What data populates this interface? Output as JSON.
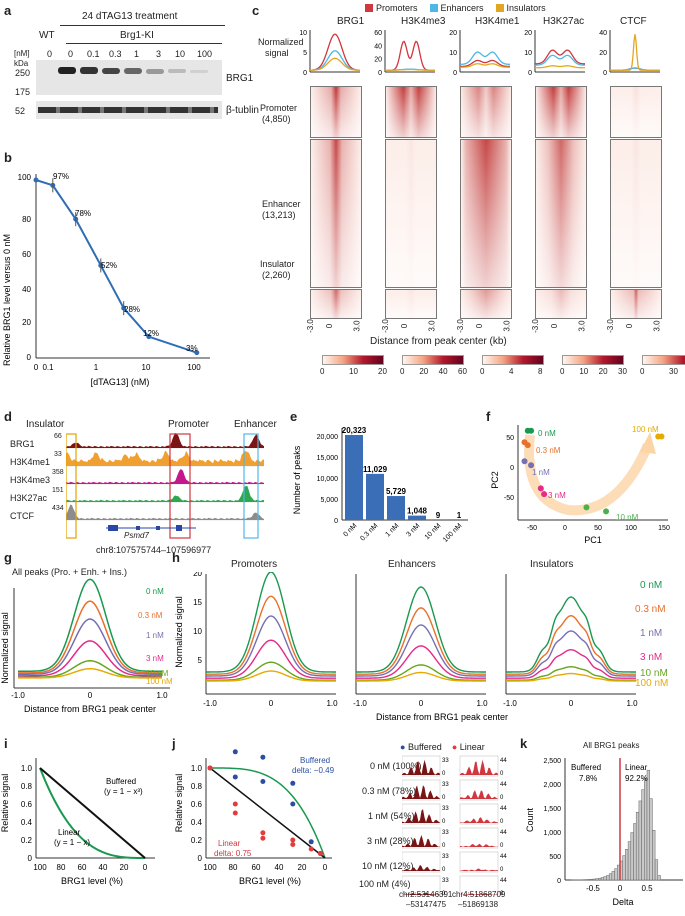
{
  "panel_letters": [
    "a",
    "b",
    "c",
    "d",
    "e",
    "f",
    "g",
    "h",
    "i",
    "j",
    "k"
  ],
  "a": {
    "treatment": "24 dTAG13 treatment",
    "wt": "WT",
    "brg1_ki": "Brg1-KI",
    "nm_unit": "[nM]",
    "kda": "kDa",
    "doses": [
      "0",
      "0",
      "0.1",
      "0.3",
      "1",
      "3",
      "10",
      "100"
    ],
    "markers": [
      "250",
      "175",
      "52"
    ],
    "band_brg1": "BRG1",
    "band_tubulin": "β-tublin"
  },
  "b": {
    "ylabel": "Relative BRG1 level versus 0 nM",
    "xlabel": "[dTAG13] (nM)",
    "yticks": [
      "0",
      "20",
      "40",
      "60",
      "80",
      "100"
    ],
    "xticks": [
      "0",
      "0.1",
      "1",
      "10",
      "100"
    ],
    "pct": [
      "97%",
      "78%",
      "52%",
      "28%",
      "12%",
      "3%"
    ],
    "chart_data": {
      "type": "line",
      "x": [
        0.1,
        0.3,
        1,
        3,
        10,
        100
      ],
      "values": [
        97,
        78,
        52,
        28,
        12,
        3
      ],
      "ylim": [
        0,
        100
      ]
    }
  },
  "c": {
    "legend": [
      "Promoters",
      "Enhancers",
      "Insulators"
    ],
    "legend_colors": [
      "#d1373f",
      "#4fb7e5",
      "#e2a722"
    ],
    "ylabel_1": "Normalized",
    "ylabel_2": "signal",
    "cols": [
      "BRG1",
      "H3K4me3",
      "H3K4me1",
      "H3K27ac",
      "CTCF"
    ],
    "top_yticks": [
      [
        "0",
        "5",
        "10"
      ],
      [
        "0",
        "20",
        "40",
        "60"
      ],
      [
        "0",
        "10",
        "20"
      ],
      [
        "0",
        "10",
        "20"
      ],
      [
        "0",
        "20",
        "40"
      ]
    ],
    "rows": [
      {
        "name": "Promoter",
        "n": "(4,850)"
      },
      {
        "name": "Enhancer",
        "n": "(13,213)"
      },
      {
        "name": "Insulator",
        "n": "(2,260)"
      }
    ],
    "xticks": [
      "-3.0",
      "0",
      "3.0"
    ],
    "xlabel": "Distance from peak center (kb)",
    "scale_ticks": [
      [
        "0",
        "10",
        "20"
      ],
      [
        "0",
        "20",
        "40",
        "60"
      ],
      [
        "0",
        "4",
        "8"
      ],
      [
        "0",
        "10",
        "20",
        "30"
      ],
      [
        "0",
        "30",
        "60"
      ]
    ]
  },
  "d": {
    "labels_top": [
      "Insulator",
      "Promoter",
      "Enhancer"
    ],
    "tracks": [
      "BRG1",
      "H3K4me1",
      "H3K4me3",
      "H3K27ac",
      "CTCF"
    ],
    "scales": [
      "66",
      "33",
      "358",
      "151",
      "434"
    ],
    "gene": "Psmd7",
    "coord": "chr8:107575744–107596977"
  },
  "e": {
    "ylabel": "Number of peaks",
    "yticks": [
      "0",
      "5,000",
      "10,000",
      "15,000",
      "20,000"
    ],
    "chart_data": {
      "type": "bar",
      "categories": [
        "0 nM",
        "0.3 nM",
        "1 nM",
        "3 nM",
        "10 nM",
        "100 nM"
      ],
      "values": [
        20323,
        11029,
        5729,
        1048,
        9,
        1
      ],
      "value_labels": [
        "20,323",
        "11,029",
        "5,729",
        "1,048",
        "9",
        "1"
      ],
      "ylim": [
        0,
        22000
      ]
    }
  },
  "f": {
    "xlabel": "PC1",
    "ylabel": "PC2",
    "yticks": [
      "50",
      "0",
      "-50"
    ],
    "xticks": [
      "-50",
      "0",
      "50",
      "100",
      "150"
    ],
    "point_labels": [
      "0 nM",
      "0.3 nM",
      "1 nM",
      "3 nM",
      "10 nM",
      "100 nM"
    ],
    "chart_data": {
      "type": "scatter",
      "points": [
        {
          "x": -55,
          "y": 55,
          "group": "0 nM",
          "color": "#1a9850"
        },
        {
          "x": -50,
          "y": 55,
          "group": "0 nM",
          "color": "#1a9850"
        },
        {
          "x": -60,
          "y": 35,
          "group": "0.3 nM",
          "color": "#e8702a"
        },
        {
          "x": -55,
          "y": 30,
          "group": "0.3 nM",
          "color": "#e8702a"
        },
        {
          "x": -60,
          "y": 2,
          "group": "1 nM",
          "color": "#7570b3"
        },
        {
          "x": -50,
          "y": -5,
          "group": "1 nM",
          "color": "#7570b3"
        },
        {
          "x": -35,
          "y": -45,
          "group": "3 nM",
          "color": "#e7298a"
        },
        {
          "x": -30,
          "y": -55,
          "group": "3 nM",
          "color": "#e7298a"
        },
        {
          "x": 35,
          "y": -78,
          "group": "10 nM",
          "color": "#4daf4a"
        },
        {
          "x": 65,
          "y": -85,
          "group": "10 nM",
          "color": "#4daf4a"
        },
        {
          "x": 145,
          "y": 45,
          "group": "100 nM",
          "color": "#e6ab02"
        },
        {
          "x": 150,
          "y": 45,
          "group": "100 nM",
          "color": "#e6ab02"
        }
      ],
      "xlim": [
        -70,
        160
      ],
      "ylim": [
        -100,
        65
      ]
    }
  },
  "g": {
    "title": "All peaks (Pro. + Enh. + Ins.)",
    "ylabel": "Normalized signal",
    "xlabel": "Distance from BRG1 peak center",
    "xticks": [
      "-1.0",
      "0",
      "1.0"
    ],
    "series_labels": [
      "0 nM",
      "0.3 nM",
      "1 nM",
      "3 nM",
      "10 nM",
      "100 nM"
    ],
    "series_colors": [
      "#1a9850",
      "#e8702a",
      "#7570b3",
      "#e7298a",
      "#66a61e",
      "#e6ab02"
    ],
    "chart_data": {
      "type": "line",
      "x_range": [
        -1.0,
        1.0
      ],
      "series": [
        {
          "name": "0 nM",
          "peak": 1.0
        },
        {
          "name": "0.3 nM",
          "peak": 0.78
        },
        {
          "name": "1 nM",
          "peak": 0.6
        },
        {
          "name": "3 nM",
          "peak": 0.38
        },
        {
          "name": "10 nM",
          "peak": 0.18
        },
        {
          "name": "100 nM",
          "peak": 0.1
        }
      ]
    }
  },
  "h": {
    "ylabel": "Normalized signal",
    "yticks": [
      "5",
      "10",
      "15",
      "20"
    ],
    "titles": [
      "Promoters",
      "Enhancers",
      "Insulators"
    ],
    "xlabel": "Distance from BRG1 peak center",
    "xticks": [
      "-1.0",
      "0",
      "1.0"
    ],
    "series_labels": [
      "0 nM",
      "0.3 nM",
      "1 nM",
      "3 nM",
      "10 nM",
      "100 nM"
    ]
  },
  "i": {
    "ylabel": "Relative signal",
    "xlabel": "BRG1 level (%)",
    "yticks": [
      "0",
      "0.2",
      "0.4",
      "0.6",
      "0.8",
      "1.0"
    ],
    "xticks": [
      "100",
      "80",
      "60",
      "40",
      "20",
      "0"
    ],
    "buffered": "Buffered",
    "buffered_eq": "(y = 1 − x³)",
    "linear": "Linear",
    "linear_eq": "(y = 1 − x)"
  },
  "j": {
    "ylabel": "Relative signal",
    "xlabel": "BRG1 level (%)",
    "yticks": [
      "0",
      "0.2",
      "0.4",
      "0.6",
      "0.8",
      "1.0"
    ],
    "xticks": [
      "100",
      "80",
      "60",
      "40",
      "20",
      "0"
    ],
    "buffered_1": "Buffered",
    "buffered_2": "delta: −0.49",
    "linear_1": "Linear",
    "linear_2": "delta: 0.75",
    "legend": [
      "Buffered",
      "Linear"
    ],
    "conds": [
      "0 nM (100%)",
      "0.3 nM (78%)",
      "1 nM (54%)",
      "3 nM (28%)",
      "10 nM (12%)",
      "100 nM (4%)"
    ],
    "scale_a": [
      "33",
      "0",
      "33",
      "0",
      "33",
      "0",
      "33",
      "0",
      "33",
      "0",
      "33",
      "0"
    ],
    "scale_b": [
      "44",
      "0",
      "44",
      "0",
      "44",
      "0",
      "44",
      "0",
      "44",
      "0",
      "44",
      "0"
    ],
    "coord_a_1": "chr2:53146391",
    "coord_a_2": "–53147475",
    "coord_b_1": "chr4:51868709",
    "coord_b_2": "–51869138",
    "chart_data": {
      "type": "scatter",
      "x_unit": "BRG1 level (%)",
      "buffered": [
        [
          100,
          1.0
        ],
        [
          78,
          1.18
        ],
        [
          78,
          0.9
        ],
        [
          54,
          1.12
        ],
        [
          54,
          0.85
        ],
        [
          28,
          0.83
        ],
        [
          28,
          0.6
        ],
        [
          12,
          0.18
        ],
        [
          4,
          0.05
        ]
      ],
      "linear": [
        [
          100,
          1.0
        ],
        [
          78,
          0.6
        ],
        [
          78,
          0.5
        ],
        [
          54,
          0.28
        ],
        [
          54,
          0.22
        ],
        [
          28,
          0.2
        ],
        [
          28,
          0.15
        ],
        [
          12,
          0.1
        ],
        [
          4,
          0.05
        ]
      ]
    }
  },
  "k": {
    "title": "All BRG1 peaks",
    "ylabel": "Count",
    "xlabel": "Delta",
    "yticks": [
      "0",
      "500",
      "1,000",
      "1,500",
      "2,000",
      "2,500"
    ],
    "xticks": [
      "-0.5",
      "0",
      "0.5"
    ],
    "buffered": "Buffered",
    "buffered_pct": "7.8%",
    "linear": "Linear",
    "linear_pct": "92.2%",
    "chart_data": {
      "type": "bar",
      "bin_start": -0.9,
      "bin_width": 0.05,
      "values": [
        2,
        3,
        4,
        5,
        7,
        9,
        12,
        16,
        22,
        30,
        40,
        55,
        75,
        100,
        140,
        190,
        250,
        330,
        420,
        540,
        680,
        850,
        1050,
        1250,
        1500,
        1750,
        2000,
        2250,
        2430,
        1800,
        1100,
        450,
        100
      ],
      "ylim": [
        0,
        2700
      ]
    }
  }
}
